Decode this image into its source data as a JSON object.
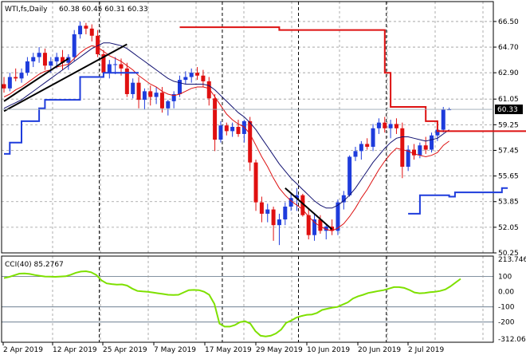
{
  "chart_data": [
    {
      "type": "candlestick",
      "title": "WTI,fs,Daily",
      "ohlc_readout": "60.38 60.45 60.31 60.33",
      "current_price_label": "60.33",
      "ylim": [
        50.25,
        67.0
      ],
      "y_ticks": [
        "66.50",
        "64.70",
        "62.90",
        "61.05",
        "59.25",
        "57.45",
        "55.65",
        "53.85",
        "52.05",
        "50.25"
      ],
      "x_ticks": [
        "2 Apr 2019",
        "12 Apr 2019",
        "25 Apr 2019",
        "7 May 2019",
        "17 May 2019",
        "29 May 2019",
        "10 Jun 2019",
        "20 Jun 2019",
        "2 Jul 2019"
      ],
      "colors": {
        "up": "#1e3cdc",
        "down": "#e01010",
        "fast_ma": "#dd1111",
        "slow_ma": "#101070",
        "stop": "#dd1111",
        "support": "#1e3cdc",
        "trend": "#000000"
      },
      "candles": [
        [
          62.1,
          62.6,
          61.5,
          61.8
        ],
        [
          61.8,
          62.9,
          61.6,
          62.6
        ],
        [
          62.6,
          63.2,
          62.3,
          62.5
        ],
        [
          62.5,
          63.2,
          62.2,
          62.9
        ],
        [
          62.9,
          64.0,
          62.7,
          63.7
        ],
        [
          63.7,
          64.3,
          63.3,
          64.0
        ],
        [
          64.0,
          64.7,
          63.6,
          64.3
        ],
        [
          64.3,
          64.6,
          63.1,
          63.4
        ],
        [
          63.4,
          64.0,
          62.9,
          63.7
        ],
        [
          63.7,
          64.3,
          63.2,
          64.0
        ],
        [
          64.0,
          64.5,
          63.1,
          63.6
        ],
        [
          63.6,
          64.2,
          63.1,
          64.0
        ],
        [
          64.0,
          65.9,
          63.7,
          65.6
        ],
        [
          65.6,
          66.5,
          65.3,
          66.2
        ],
        [
          66.2,
          66.4,
          65.6,
          66.0
        ],
        [
          66.0,
          66.3,
          65.1,
          65.5
        ],
        [
          65.5,
          65.9,
          64.0,
          64.2
        ],
        [
          64.2,
          64.5,
          62.7,
          62.9
        ],
        [
          62.9,
          63.8,
          62.5,
          63.5
        ],
        [
          63.5,
          64.0,
          62.8,
          63.5
        ],
        [
          63.5,
          63.9,
          62.7,
          63.2
        ],
        [
          63.2,
          63.6,
          61.2,
          61.4
        ],
        [
          61.4,
          62.5,
          61.1,
          62.2
        ],
        [
          62.2,
          62.6,
          60.4,
          61.0
        ],
        [
          61.0,
          61.8,
          60.3,
          61.6
        ],
        [
          61.6,
          62.0,
          60.6,
          61.2
        ],
        [
          61.2,
          61.9,
          60.7,
          61.5
        ],
        [
          61.5,
          61.9,
          60.1,
          60.4
        ],
        [
          60.4,
          61.0,
          59.9,
          60.9
        ],
        [
          60.9,
          61.6,
          60.4,
          61.4
        ],
        [
          61.4,
          62.7,
          61.2,
          62.4
        ],
        [
          62.4,
          63.0,
          62.1,
          62.6
        ],
        [
          62.6,
          63.2,
          62.2,
          62.9
        ],
        [
          62.9,
          63.3,
          62.4,
          62.7
        ],
        [
          62.7,
          63.1,
          61.9,
          62.3
        ],
        [
          62.3,
          62.6,
          60.6,
          61.1
        ],
        [
          61.1,
          61.4,
          57.4,
          58.2
        ],
        [
          58.2,
          59.5,
          58.0,
          59.2
        ],
        [
          59.2,
          59.4,
          58.5,
          58.8
        ],
        [
          58.8,
          59.4,
          58.4,
          59.1
        ],
        [
          59.1,
          59.6,
          58.4,
          58.6
        ],
        [
          58.6,
          59.6,
          58.0,
          59.5
        ],
        [
          59.5,
          59.8,
          56.0,
          56.6
        ],
        [
          56.6,
          56.8,
          53.2,
          53.8
        ],
        [
          53.8,
          54.2,
          52.4,
          53.0
        ],
        [
          53.0,
          53.7,
          52.4,
          53.3
        ],
        [
          53.3,
          53.5,
          51.1,
          52.2
        ],
        [
          52.2,
          53.0,
          50.8,
          52.6
        ],
        [
          52.6,
          53.8,
          52.2,
          53.5
        ],
        [
          53.5,
          54.5,
          53.2,
          54.1
        ],
        [
          54.1,
          54.8,
          53.2,
          54.3
        ],
        [
          54.3,
          54.4,
          52.8,
          52.9
        ],
        [
          52.9,
          53.4,
          51.2,
          51.5
        ],
        [
          51.5,
          53.0,
          51.1,
          52.6
        ],
        [
          52.6,
          52.9,
          51.6,
          51.8
        ],
        [
          51.8,
          52.3,
          51.2,
          52.1
        ],
        [
          52.1,
          52.6,
          51.5,
          51.8
        ],
        [
          51.8,
          54.0,
          51.5,
          53.8
        ],
        [
          53.8,
          54.6,
          53.3,
          54.3
        ],
        [
          54.3,
          57.1,
          54.2,
          57.0
        ],
        [
          57.0,
          57.7,
          56.7,
          57.4
        ],
        [
          57.4,
          58.1,
          56.8,
          57.9
        ],
        [
          57.9,
          58.3,
          57.5,
          57.7
        ],
        [
          57.7,
          59.3,
          57.4,
          59.0
        ],
        [
          59.0,
          59.7,
          58.6,
          59.4
        ],
        [
          59.4,
          59.8,
          58.7,
          59.0
        ],
        [
          59.0,
          59.6,
          58.3,
          59.3
        ],
        [
          59.3,
          59.7,
          58.6,
          59.0
        ],
        [
          59.0,
          59.4,
          55.5,
          56.3
        ],
        [
          56.3,
          57.8,
          56.0,
          57.5
        ],
        [
          57.5,
          57.9,
          56.8,
          57.1
        ],
        [
          57.1,
          58.0,
          56.9,
          57.8
        ],
        [
          57.8,
          58.4,
          57.2,
          57.5
        ],
        [
          57.5,
          58.7,
          57.3,
          58.5
        ],
        [
          58.5,
          59.2,
          58.1,
          58.9
        ],
        [
          58.9,
          60.5,
          58.7,
          60.3
        ],
        [
          60.3,
          60.45,
          60.31,
          60.33
        ]
      ],
      "fast_ma": [
        61.2,
        61.4,
        61.7,
        61.9,
        62.2,
        62.5,
        62.8,
        63.0,
        63.1,
        63.3,
        63.4,
        63.5,
        63.9,
        64.3,
        64.6,
        64.8,
        64.7,
        64.4,
        64.1,
        63.9,
        63.7,
        63.4,
        63.1,
        62.7,
        62.4,
        62.1,
        61.9,
        61.6,
        61.4,
        61.3,
        61.4,
        61.6,
        61.8,
        61.9,
        61.9,
        61.8,
        61.2,
        60.6,
        60.0,
        59.6,
        59.3,
        59.1,
        58.6,
        57.8,
        57.0,
        56.3,
        55.5,
        54.8,
        54.3,
        53.9,
        53.6,
        53.3,
        52.8,
        52.4,
        52.1,
        51.9,
        51.8,
        52.0,
        52.3,
        52.8,
        53.4,
        54.1,
        54.7,
        55.4,
        56.1,
        56.7,
        57.2,
        57.6,
        57.5,
        57.4,
        57.2,
        57.1,
        57.0,
        57.1,
        57.3,
        57.8,
        58.1
      ],
      "slow_ma": [
        60.4,
        60.6,
        60.8,
        61.0,
        61.3,
        61.6,
        61.9,
        62.2,
        62.5,
        62.8,
        63.1,
        63.4,
        63.7,
        64.0,
        64.3,
        64.6,
        64.8,
        65.0,
        65.0,
        64.9,
        64.8,
        64.6,
        64.3,
        64.0,
        63.7,
        63.4,
        63.1,
        62.8,
        62.5,
        62.3,
        62.2,
        62.1,
        62.1,
        62.1,
        62.1,
        62.0,
        61.7,
        61.3,
        60.9,
        60.5,
        60.1,
        59.8,
        59.4,
        58.9,
        58.3,
        57.7,
        57.1,
        56.5,
        56.0,
        55.5,
        55.1,
        54.7,
        54.3,
        53.9,
        53.6,
        53.4,
        53.4,
        53.6,
        53.9,
        54.3,
        54.8,
        55.4,
        56.0,
        56.6,
        57.1,
        57.6,
        58.0,
        58.3,
        58.4,
        58.4,
        58.3,
        58.2,
        58.1,
        58.2,
        58.3,
        58.6,
        58.9
      ],
      "stop_line": [
        [
          null,
          30
        ],
        [
          66.1,
          17
        ],
        [
          65.9,
          18
        ],
        [
          62.9,
          1
        ],
        [
          60.5,
          6
        ],
        [
          59.5,
          2
        ],
        [
          58.8,
          18
        ]
      ],
      "support_line": [
        [
          57.2,
          1
        ],
        [
          58.0,
          2
        ],
        [
          59.5,
          3
        ],
        [
          60.4,
          1
        ],
        [
          61.0,
          6
        ],
        [
          62.6,
          4
        ],
        [
          62.9,
          6
        ],
        [
          null,
          46
        ],
        [
          53.0,
          2
        ],
        [
          54.3,
          5
        ],
        [
          54.2,
          1
        ],
        [
          54.5,
          8
        ],
        [
          54.8,
          1
        ]
      ],
      "trendlines": [
        {
          "x0": 0,
          "y0": 60.9,
          "x1": 11,
          "y1": 63.9
        },
        {
          "x0": 0,
          "y0": 60.2,
          "x1": 21,
          "y1": 64.9
        },
        {
          "x0": 48,
          "y0": 54.8,
          "x1": 56,
          "y1": 51.9
        }
      ],
      "vlines": [
        16,
        37,
        50,
        65
      ]
    },
    {
      "type": "line",
      "title": "CCI(40) 85.2767",
      "ylim": [
        -312.062,
        213.746
      ],
      "y_ticks": [
        "213.746",
        "100",
        "0.00",
        "-100",
        "-200",
        "-312.062"
      ],
      "levels": [
        100,
        -100,
        -200
      ],
      "color": "#7ee000",
      "values": [
        90,
        97,
        108,
        119,
        120,
        117,
        110,
        105,
        100,
        99,
        98,
        100,
        102,
        112,
        125,
        133,
        135,
        128,
        110,
        75,
        55,
        50,
        47,
        48,
        40,
        20,
        5,
        2,
        0,
        -5,
        -10,
        -15,
        -20,
        -22,
        -20,
        -5,
        10,
        12,
        10,
        0,
        -20,
        -80,
        -210,
        -230,
        -230,
        -220,
        -200,
        -195,
        -210,
        -260,
        -290,
        -295,
        -290,
        -275,
        -250,
        -205,
        -190,
        -170,
        -160,
        -152,
        -150,
        -140,
        -120,
        -112,
        -105,
        -100,
        -85,
        -70,
        -45,
        -30,
        -20,
        -8,
        -2,
        5,
        10,
        20,
        30,
        30,
        25,
        12,
        -5,
        -10,
        -8,
        -3,
        0,
        5,
        15,
        35,
        60,
        85
      ]
    }
  ]
}
